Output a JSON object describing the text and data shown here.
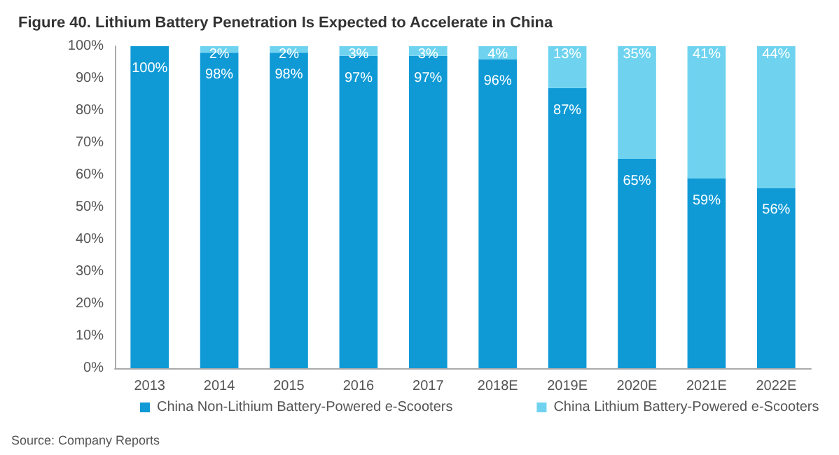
{
  "chart_data": {
    "type": "bar",
    "title": "Figure 40. Lithium Battery Penetration Is Expected to Accelerate in China",
    "categories": [
      "2013",
      "2014",
      "2015",
      "2016",
      "2017",
      "2018E",
      "2019E",
      "2020E",
      "2021E",
      "2022E"
    ],
    "stacked": true,
    "series": [
      {
        "name": "China Non-Lithium Battery-Powered e-Scooters",
        "color": "#0f9ad6",
        "values": [
          100,
          98,
          98,
          97,
          97,
          96,
          87,
          65,
          59,
          56
        ],
        "value_labels": [
          "100%",
          "98%",
          "98%",
          "97%",
          "97%",
          "96%",
          "87%",
          "65%",
          "59%",
          "56%"
        ]
      },
      {
        "name": "China Lithium Battery-Powered e-Scooters",
        "color": "#6fd3f0",
        "values": [
          0,
          2,
          2,
          3,
          3,
          4,
          13,
          35,
          41,
          44
        ],
        "value_labels": [
          null,
          "2%",
          "2%",
          "3%",
          "3%",
          "4%",
          "13%",
          "35%",
          "41%",
          "44%"
        ]
      }
    ],
    "ylim": [
      0,
      100
    ],
    "yticks": [
      {
        "value": 0,
        "label": "0%"
      },
      {
        "value": 10,
        "label": "10%"
      },
      {
        "value": 20,
        "label": "20%"
      },
      {
        "value": 30,
        "label": "30%"
      },
      {
        "value": 40,
        "label": "40%"
      },
      {
        "value": 50,
        "label": "50%"
      },
      {
        "value": 60,
        "label": "60%"
      },
      {
        "value": 70,
        "label": "70%"
      },
      {
        "value": 80,
        "label": "80%"
      },
      {
        "value": 90,
        "label": "90%"
      },
      {
        "value": 100,
        "label": "100%"
      }
    ],
    "legend": "bottom",
    "annotations": [
      "Source: Company Reports"
    ]
  }
}
